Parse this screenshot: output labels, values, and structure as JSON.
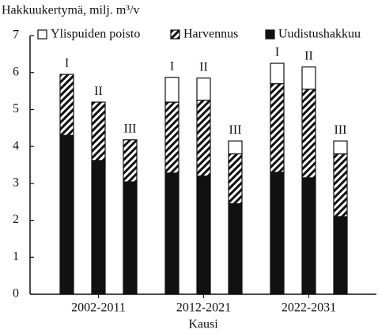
{
  "chart_data": {
    "type": "stacked_bar",
    "y_label": "Hakkuukertymä, milj. m³/v",
    "x_label": "Kausi",
    "groups": [
      "2002-2011",
      "2012-2021",
      "2022-2031"
    ],
    "bar_labels": [
      "I",
      "II",
      "III",
      "I",
      "II",
      "III",
      "I",
      "II",
      "III"
    ],
    "series": [
      {
        "name": "Ylispuiden poisto",
        "color": "#ffffff",
        "values": [
          0,
          0,
          0,
          0.67,
          0.6,
          0.35,
          0.55,
          0.6,
          0.35
        ]
      },
      {
        "name": "Harvennus",
        "color": "#111111",
        "pattern": "diagonal",
        "values": [
          1.65,
          1.58,
          1.14,
          1.92,
          2.05,
          1.35,
          2.4,
          2.4,
          1.7
        ]
      },
      {
        "name": "Uudistushakkuu",
        "color": "#111111",
        "values": [
          4.3,
          3.62,
          3.04,
          3.28,
          3.2,
          2.45,
          3.3,
          3.15,
          2.1
        ]
      }
    ],
    "ylim": [
      0,
      7
    ],
    "yticks": [
      0,
      1,
      2,
      3,
      4,
      5,
      6,
      7
    ],
    "legend": "top"
  }
}
